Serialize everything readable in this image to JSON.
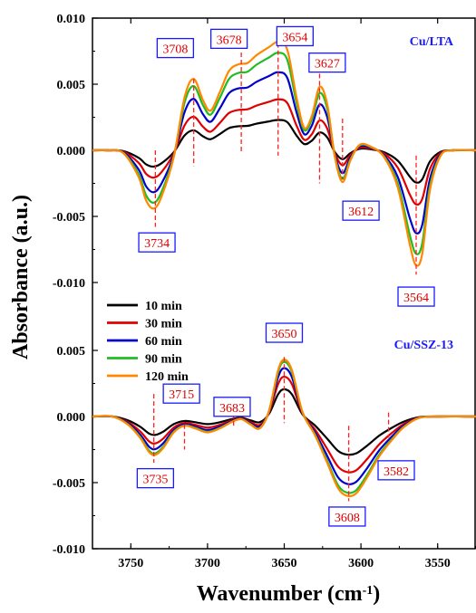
{
  "chart_data": {
    "type": "line",
    "xlabel_main": "Wavenumber (cm",
    "xlabel_sup": "-1",
    "xlabel_close": ")",
    "ylabel": "Absorbance (a.u.)",
    "xlim": [
      3775,
      3525
    ],
    "ylim": [
      -0.01,
      0.01
    ],
    "x_ticks": [
      3750,
      3700,
      3650,
      3600,
      3550
    ],
    "y_ticks": [
      -0.01,
      -0.005,
      0.0,
      0.005,
      0.01
    ],
    "y_tick_labels": [
      "-0.010",
      "-0.005",
      "0.000",
      "0.005",
      "0.010"
    ],
    "x_tick_labels": [
      "3750",
      "3700",
      "3650",
      "3600",
      "3550"
    ],
    "panels": [
      {
        "label": "Cu/LTA",
        "offset": 0.0
      },
      {
        "label": "Cu/SSZ-13",
        "offset": -0.0205
      }
    ],
    "series": [
      {
        "name": "10 min",
        "color": "#000000"
      },
      {
        "name": "30 min",
        "color": "#e00000"
      },
      {
        "name": "60 min",
        "color": "#0000cc"
      },
      {
        "name": "90 min",
        "color": "#22bb22"
      },
      {
        "name": "120 min",
        "color": "#ff8800"
      }
    ],
    "top_scale": [
      0.28,
      0.47,
      0.72,
      0.9,
      1.0
    ],
    "bottom_scale": [
      0.48,
      0.7,
      0.85,
      0.96,
      1.0
    ],
    "top_profile_120": [
      [
        3775,
        0.0
      ],
      [
        3765,
        0.0
      ],
      [
        3755,
        -0.0002
      ],
      [
        3745,
        -0.002
      ],
      [
        3740,
        -0.0038
      ],
      [
        3735,
        -0.0044
      ],
      [
        3730,
        -0.0035
      ],
      [
        3722,
        -0.0005
      ],
      [
        3715,
        0.004
      ],
      [
        3709,
        0.0054
      ],
      [
        3703,
        0.0038
      ],
      [
        3698,
        0.003
      ],
      [
        3692,
        0.0044
      ],
      [
        3686,
        0.006
      ],
      [
        3680,
        0.0065
      ],
      [
        3674,
        0.0066
      ],
      [
        3668,
        0.0072
      ],
      [
        3660,
        0.0078
      ],
      [
        3654,
        0.0082
      ],
      [
        3648,
        0.0076
      ],
      [
        3642,
        0.004
      ],
      [
        3637,
        0.0017
      ],
      [
        3632,
        0.0026
      ],
      [
        3627,
        0.0048
      ],
      [
        3622,
        0.0035
      ],
      [
        3617,
        -0.0005
      ],
      [
        3612,
        -0.0024
      ],
      [
        3607,
        -0.0008
      ],
      [
        3601,
        0.0004
      ],
      [
        3594,
        0.0003
      ],
      [
        3585,
        -0.0005
      ],
      [
        3576,
        -0.0028
      ],
      [
        3568,
        -0.0072
      ],
      [
        3564,
        -0.0087
      ],
      [
        3560,
        -0.0078
      ],
      [
        3555,
        -0.003
      ],
      [
        3548,
        -0.0004
      ],
      [
        3540,
        0.0
      ],
      [
        3525,
        0.0
      ]
    ],
    "bottom_profile_120": [
      [
        3775,
        0.0
      ],
      [
        3762,
        0.0
      ],
      [
        3752,
        -0.0006
      ],
      [
        3744,
        -0.0016
      ],
      [
        3738,
        -0.0027
      ],
      [
        3734,
        -0.0029
      ],
      [
        3729,
        -0.0024
      ],
      [
        3722,
        -0.0012
      ],
      [
        3715,
        -0.0007
      ],
      [
        3708,
        -0.0009
      ],
      [
        3700,
        -0.0012
      ],
      [
        3692,
        -0.0009
      ],
      [
        3684,
        -0.0004
      ],
      [
        3678,
        -0.0002
      ],
      [
        3672,
        -0.0006
      ],
      [
        3666,
        -0.0009
      ],
      [
        3660,
        0.0004
      ],
      [
        3654,
        0.0035
      ],
      [
        3650,
        0.0043
      ],
      [
        3645,
        0.0035
      ],
      [
        3638,
        0.0003
      ],
      [
        3630,
        -0.0014
      ],
      [
        3622,
        -0.0035
      ],
      [
        3615,
        -0.0054
      ],
      [
        3609,
        -0.006
      ],
      [
        3603,
        -0.0058
      ],
      [
        3596,
        -0.0046
      ],
      [
        3588,
        -0.003
      ],
      [
        3580,
        -0.0018
      ],
      [
        3572,
        -0.0008
      ],
      [
        3562,
        -0.0001
      ],
      [
        3550,
        0.0
      ],
      [
        3525,
        0.0
      ]
    ],
    "annotations": [
      {
        "text": "3708",
        "x": 3709,
        "panel": 0,
        "y1": 0.0054,
        "y2": -0.0012,
        "box_x": 3721,
        "box_y": 0.0077
      },
      {
        "text": "3678",
        "x": 3678,
        "panel": 0,
        "y1": 0.0074,
        "y2": -0.0002,
        "box_x": 3686,
        "box_y": 0.0084
      },
      {
        "text": "3654",
        "x": 3654,
        "panel": 0,
        "y1": 0.0092,
        "y2": -0.0004,
        "box_x": 3643,
        "box_y": 0.0086
      },
      {
        "text": "3627",
        "x": 3627,
        "panel": 0,
        "y1": 0.0058,
        "y2": -0.0025,
        "box_x": 3622,
        "box_y": 0.0066
      },
      {
        "text": "3612",
        "x": 3612,
        "panel": 0,
        "y1": 0.0024,
        "y2": -0.0022,
        "box_x": 3600,
        "box_y": -0.0046
      },
      {
        "text": "3734",
        "x": 3734,
        "panel": 0,
        "y1": 0.0,
        "y2": -0.0058,
        "box_x": 3733,
        "box_y": -0.007
      },
      {
        "text": "3564",
        "x": 3564,
        "panel": 0,
        "y1": -0.0004,
        "y2": -0.0094,
        "box_x": 3564,
        "box_y": -0.0111
      },
      {
        "text": "3650",
        "x": 3650,
        "panel": 1,
        "y1": 0.0045,
        "y2": -0.0005,
        "box_x": 3650,
        "box_y": 0.0063
      },
      {
        "text": "3715",
        "x": 3715,
        "panel": 1,
        "y1": -0.0006,
        "y2": -0.0025,
        "box_x": 3717,
        "box_y": 0.0017
      },
      {
        "text": "3683",
        "x": 3683,
        "panel": 1,
        "y1": 0.0002,
        "y2": -0.0008,
        "box_x": 3684,
        "box_y": 0.0007
      },
      {
        "text": "3735",
        "x": 3735,
        "panel": 1,
        "y1": 0.0017,
        "y2": -0.0035,
        "box_x": 3734,
        "box_y": -0.0047
      },
      {
        "text": "3608",
        "x": 3608,
        "panel": 1,
        "y1": -0.0007,
        "y2": -0.0064,
        "box_x": 3609,
        "box_y": -0.0076
      },
      {
        "text": "3582",
        "x": 3582,
        "panel": 1,
        "y1": 0.0003,
        "y2": -0.0016,
        "box_x": 3577,
        "box_y": -0.0041
      }
    ]
  }
}
